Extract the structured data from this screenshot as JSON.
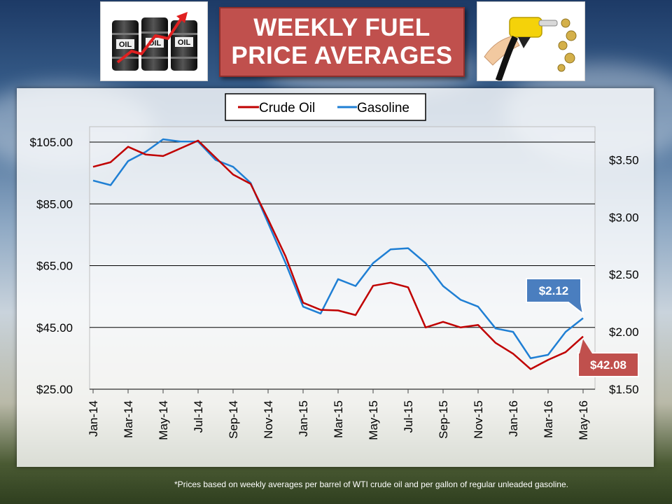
{
  "title": {
    "line1": "WEEKLY FUEL",
    "line2": "PRICE AVERAGES"
  },
  "images": {
    "left": {
      "icon": "oil-barrels-rising-arrow-icon",
      "barrel_label": "OIL"
    },
    "right": {
      "icon": "fuel-nozzle-coins-icon"
    }
  },
  "legend": {
    "crude": "Crude Oil",
    "gasoline": "Gasoline"
  },
  "footnote": "*Prices based on weekly averages per barrel of WTI crude oil and per gallon of regular unleaded gasoline.",
  "callouts": {
    "gasoline": "$2.12",
    "crude": "$42.08"
  },
  "colors": {
    "crude": "#c00000",
    "gasoline": "#1f7fd4",
    "title_bg": "#c0504d",
    "callout_gasoline": "#4a7ebf",
    "callout_crude": "#c0504d"
  },
  "chart_data": {
    "type": "line",
    "title": "",
    "x": [
      "Jan-14",
      "Feb-14",
      "Mar-14",
      "Apr-14",
      "May-14",
      "Jun-14",
      "Jul-14",
      "Aug-14",
      "Sep-14",
      "Oct-14",
      "Nov-14",
      "Dec-14",
      "Jan-15",
      "Feb-15",
      "Mar-15",
      "Apr-15",
      "May-15",
      "Jun-15",
      "Jul-15",
      "Aug-15",
      "Sep-15",
      "Oct-15",
      "Nov-15",
      "Dec-15",
      "Jan-16",
      "Feb-16",
      "Mar-16",
      "Apr-16",
      "May-16"
    ],
    "x_tick_labels": [
      "Jan-14",
      "Mar-14",
      "May-14",
      "Jul-14",
      "Sep-14",
      "Nov-14",
      "Jan-15",
      "Mar-15",
      "May-15",
      "Jul-15",
      "Sep-15",
      "Nov-15",
      "Jan-16",
      "Mar-16",
      "May-16"
    ],
    "grid": true,
    "legend_position": "top-center",
    "series": [
      {
        "name": "Crude Oil",
        "axis": "left",
        "values": [
          97.0,
          98.5,
          103.5,
          101.0,
          100.5,
          103.0,
          105.5,
          100.0,
          94.5,
          91.5,
          80.0,
          68.0,
          53.0,
          50.7,
          50.5,
          49.0,
          58.5,
          59.5,
          58.0,
          45.0,
          46.8,
          45.0,
          45.8,
          40.0,
          36.5,
          31.5,
          34.5,
          37.0,
          42.08
        ]
      },
      {
        "name": "Gasoline",
        "axis": "right",
        "values": [
          3.32,
          3.28,
          3.49,
          3.57,
          3.68,
          3.66,
          3.66,
          3.5,
          3.44,
          3.3,
          2.95,
          2.6,
          2.22,
          2.16,
          2.46,
          2.4,
          2.6,
          2.72,
          2.73,
          2.6,
          2.4,
          2.28,
          2.22,
          2.03,
          2.0,
          1.77,
          1.8,
          2.0,
          2.12
        ]
      }
    ],
    "y_left": {
      "min": 25,
      "max": 110,
      "ticks": [
        25,
        45,
        65,
        85,
        105
      ],
      "tick_labels": [
        "$25.00",
        "$45.00",
        "$65.00",
        "$85.00",
        "$105.00"
      ]
    },
    "y_right": {
      "min": 1.5,
      "max": 3.79,
      "ticks": [
        1.5,
        2.0,
        2.5,
        3.0,
        3.5
      ],
      "tick_labels": [
        "$1.50",
        "$2.00",
        "$2.50",
        "$3.00",
        "$3.50"
      ]
    },
    "annotations": [
      {
        "series": "Gasoline",
        "label": "$2.12"
      },
      {
        "series": "Crude Oil",
        "label": "$42.08"
      }
    ]
  }
}
